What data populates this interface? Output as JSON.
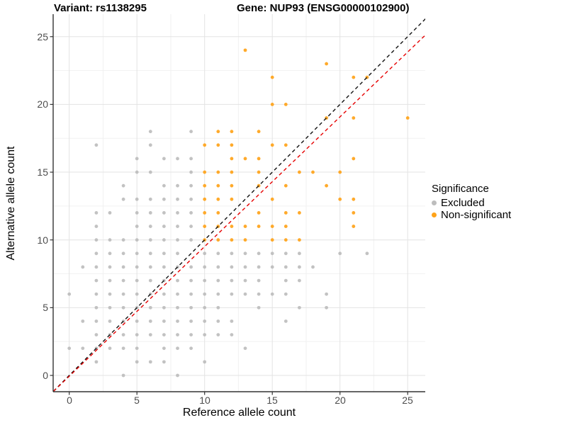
{
  "chart_data": {
    "type": "scatter",
    "titles": {
      "left": "Variant: rs1138295",
      "right": "Gene: NUP93 (ENSG00000102900)"
    },
    "xlabel": "Reference allele count",
    "ylabel": "Alternative allele count",
    "xlim": [
      -1.3,
      26.4
    ],
    "ylim": [
      -1.3,
      26.9
    ],
    "x_ticks": [
      0,
      5,
      10,
      15,
      20,
      25
    ],
    "y_ticks": [
      0,
      5,
      10,
      15,
      20,
      25
    ],
    "grid": {
      "major_step": 5,
      "minor_step": 2.5,
      "major_color": "#e3e3e3",
      "minor_color": "#f1f1f1"
    },
    "legend": {
      "title": "Significance",
      "position": "right",
      "items": [
        {
          "label": "Excluded",
          "color": "#bdbdbd"
        },
        {
          "label": "Non-significant",
          "color": "#ffa319"
        }
      ]
    },
    "reference_lines": [
      {
        "name": "identity",
        "style": "dashed",
        "color": "#111111",
        "slope": 1,
        "intercept": 0
      },
      {
        "name": "expected-ratio",
        "style": "dashed",
        "color": "#e60000",
        "slope": 0.957,
        "intercept": -0.06
      }
    ],
    "series": [
      {
        "name": "Excluded",
        "color": "#bdbdbd",
        "points": [
          [
            6,
            18
          ],
          [
            9,
            18
          ],
          [
            2,
            17
          ],
          [
            6,
            17
          ],
          [
            5,
            16
          ],
          [
            7,
            16
          ],
          [
            8,
            16
          ],
          [
            9,
            16
          ],
          [
            5,
            15
          ],
          [
            6,
            15
          ],
          [
            9,
            15
          ],
          [
            4,
            14
          ],
          [
            7,
            14
          ],
          [
            8,
            14
          ],
          [
            9,
            14
          ],
          [
            4,
            13
          ],
          [
            5,
            13
          ],
          [
            6,
            13
          ],
          [
            7,
            13
          ],
          [
            8,
            13
          ],
          [
            9,
            13
          ],
          [
            2,
            12
          ],
          [
            3,
            12
          ],
          [
            5,
            12
          ],
          [
            6,
            12
          ],
          [
            7,
            12
          ],
          [
            8,
            12
          ],
          [
            9,
            12
          ],
          [
            2,
            11
          ],
          [
            5,
            11
          ],
          [
            6,
            11
          ],
          [
            7,
            11
          ],
          [
            8,
            11
          ],
          [
            9,
            11
          ],
          [
            2,
            10
          ],
          [
            3,
            10
          ],
          [
            4,
            10
          ],
          [
            5,
            10
          ],
          [
            6,
            10
          ],
          [
            7,
            10
          ],
          [
            8,
            10
          ],
          [
            9,
            10
          ],
          [
            2,
            9
          ],
          [
            3,
            9
          ],
          [
            4,
            9
          ],
          [
            5,
            9
          ],
          [
            6,
            9
          ],
          [
            7,
            9
          ],
          [
            8,
            9
          ],
          [
            10,
            9
          ],
          [
            11,
            9
          ],
          [
            12,
            9
          ],
          [
            13,
            9
          ],
          [
            14,
            9
          ],
          [
            15,
            9
          ],
          [
            16,
            9
          ],
          [
            17,
            9
          ],
          [
            20,
            9
          ],
          [
            22,
            9
          ],
          [
            1,
            8
          ],
          [
            2,
            8
          ],
          [
            3,
            8
          ],
          [
            4,
            8
          ],
          [
            5,
            8
          ],
          [
            6,
            8
          ],
          [
            7,
            8
          ],
          [
            8,
            8
          ],
          [
            9,
            8
          ],
          [
            10,
            8
          ],
          [
            11,
            8
          ],
          [
            12,
            8
          ],
          [
            13,
            8
          ],
          [
            14,
            8
          ],
          [
            15,
            8
          ],
          [
            16,
            8
          ],
          [
            17,
            8
          ],
          [
            18,
            8
          ],
          [
            2,
            7
          ],
          [
            3,
            7
          ],
          [
            4,
            7
          ],
          [
            5,
            7
          ],
          [
            6,
            7
          ],
          [
            7,
            7
          ],
          [
            8,
            7
          ],
          [
            9,
            7
          ],
          [
            10,
            7
          ],
          [
            11,
            7
          ],
          [
            12,
            7
          ],
          [
            13,
            7
          ],
          [
            14,
            7
          ],
          [
            16,
            7
          ],
          [
            17,
            7
          ],
          [
            0,
            6
          ],
          [
            2,
            6
          ],
          [
            3,
            6
          ],
          [
            4,
            6
          ],
          [
            5,
            6
          ],
          [
            6,
            6
          ],
          [
            7,
            6
          ],
          [
            8,
            6
          ],
          [
            9,
            6
          ],
          [
            10,
            6
          ],
          [
            11,
            6
          ],
          [
            12,
            6
          ],
          [
            13,
            6
          ],
          [
            14,
            6
          ],
          [
            15,
            6
          ],
          [
            16,
            6
          ],
          [
            19,
            6
          ],
          [
            2,
            5
          ],
          [
            3,
            5
          ],
          [
            4,
            5
          ],
          [
            5,
            5
          ],
          [
            6,
            5
          ],
          [
            7,
            5
          ],
          [
            8,
            5
          ],
          [
            9,
            5
          ],
          [
            10,
            5
          ],
          [
            11,
            5
          ],
          [
            14,
            5
          ],
          [
            17,
            5
          ],
          [
            19,
            5
          ],
          [
            1,
            4
          ],
          [
            2,
            4
          ],
          [
            3,
            4
          ],
          [
            4,
            4
          ],
          [
            5,
            4
          ],
          [
            6,
            4
          ],
          [
            7,
            4
          ],
          [
            8,
            4
          ],
          [
            9,
            4
          ],
          [
            10,
            4
          ],
          [
            11,
            4
          ],
          [
            12,
            4
          ],
          [
            16,
            4
          ],
          [
            2,
            3
          ],
          [
            3,
            3
          ],
          [
            4,
            3
          ],
          [
            5,
            3
          ],
          [
            6,
            3
          ],
          [
            7,
            3
          ],
          [
            8,
            3
          ],
          [
            9,
            3
          ],
          [
            10,
            3
          ],
          [
            11,
            3
          ],
          [
            12,
            3
          ],
          [
            0,
            2
          ],
          [
            1,
            2
          ],
          [
            2,
            2
          ],
          [
            3,
            2
          ],
          [
            4,
            2
          ],
          [
            5,
            2
          ],
          [
            7,
            2
          ],
          [
            8,
            2
          ],
          [
            9,
            2
          ],
          [
            13,
            2
          ],
          [
            2,
            1
          ],
          [
            5,
            1
          ],
          [
            6,
            1
          ],
          [
            7,
            1
          ],
          [
            10,
            1
          ],
          [
            4,
            0
          ],
          [
            8,
            0
          ]
        ]
      },
      {
        "name": "Non-significant",
        "color": "#ffa319",
        "points": [
          [
            13,
            24
          ],
          [
            19,
            23
          ],
          [
            15,
            22
          ],
          [
            21,
            22
          ],
          [
            22,
            22
          ],
          [
            15,
            20
          ],
          [
            16,
            20
          ],
          [
            19,
            19
          ],
          [
            21,
            19
          ],
          [
            25,
            19
          ],
          [
            11,
            18
          ],
          [
            12,
            18
          ],
          [
            14,
            18
          ],
          [
            10,
            17
          ],
          [
            11,
            17
          ],
          [
            12,
            17
          ],
          [
            15,
            17
          ],
          [
            16,
            17
          ],
          [
            12,
            16
          ],
          [
            13,
            16
          ],
          [
            14,
            16
          ],
          [
            21,
            16
          ],
          [
            10,
            15
          ],
          [
            11,
            15
          ],
          [
            12,
            15
          ],
          [
            14,
            15
          ],
          [
            17,
            15
          ],
          [
            18,
            15
          ],
          [
            20,
            15
          ],
          [
            10,
            14
          ],
          [
            11,
            14
          ],
          [
            12,
            14
          ],
          [
            14,
            14
          ],
          [
            16,
            14
          ],
          [
            19,
            14
          ],
          [
            10,
            13
          ],
          [
            11,
            13
          ],
          [
            12,
            13
          ],
          [
            15,
            13
          ],
          [
            20,
            13
          ],
          [
            21,
            13
          ],
          [
            10,
            12
          ],
          [
            11,
            12
          ],
          [
            14,
            12
          ],
          [
            16,
            12
          ],
          [
            17,
            12
          ],
          [
            21,
            12
          ],
          [
            10,
            11
          ],
          [
            11,
            11
          ],
          [
            12,
            11
          ],
          [
            13,
            11
          ],
          [
            14,
            11
          ],
          [
            15,
            11
          ],
          [
            16,
            11
          ],
          [
            21,
            11
          ],
          [
            10,
            10
          ],
          [
            11,
            10
          ],
          [
            12,
            10
          ],
          [
            13,
            10
          ],
          [
            15,
            10
          ],
          [
            16,
            10
          ],
          [
            17,
            10
          ]
        ]
      }
    ]
  }
}
